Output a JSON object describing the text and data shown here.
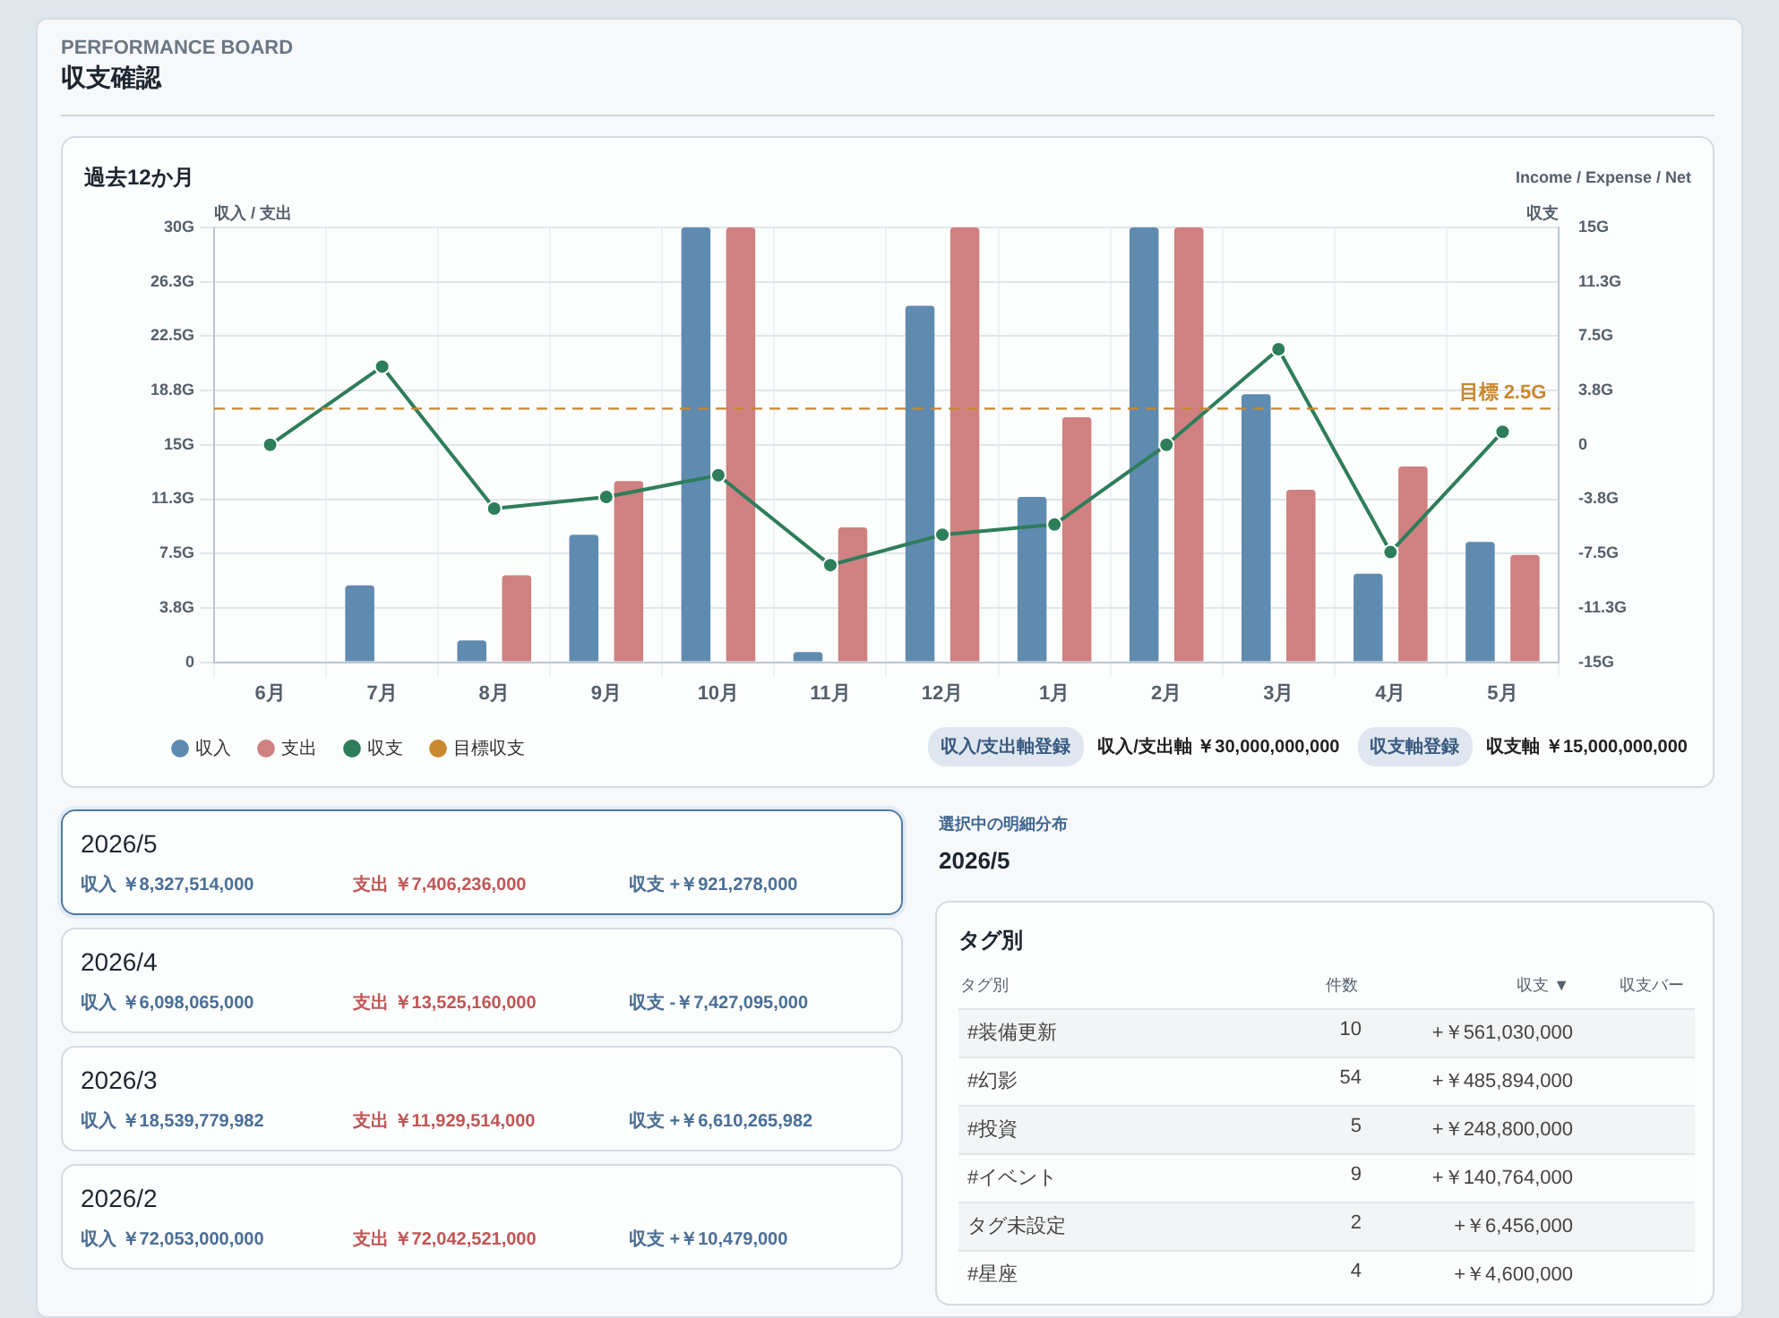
{
  "chart_data": [
    {
      "type": "other",
      "title": "収支確認",
      "subtitle": "PERFORMANCE BOARD"
    },
    {
      "type": "bar",
      "title": "過去12か月",
      "subtitle": "Income / Expense / Net",
      "ylabel": "収入 / 支出",
      "y2label": "収支",
      "categories": [
        "6月",
        "7月",
        "8月",
        "9月",
        "10月",
        "11月",
        "12月",
        "1月",
        "2月",
        "3月",
        "4月",
        "5月"
      ],
      "series": [
        {
          "name": "収入",
          "type": "bar",
          "color": "#5f8bb0",
          "values": [
            0,
            5.3,
            1.5,
            8.8,
            30,
            0.7,
            24.6,
            11.4,
            30,
            18.5,
            6.1,
            8.3
          ]
        },
        {
          "name": "支出",
          "type": "bar",
          "color": "#d08080",
          "values": [
            0,
            0,
            6.0,
            12.5,
            30,
            9.3,
            30,
            16.9,
            30,
            11.9,
            13.5,
            7.4
          ]
        },
        {
          "name": "収支",
          "type": "line",
          "axis": "y2",
          "color": "#2e7d5b",
          "marker": "circle",
          "values": [
            0,
            5.4,
            -4.4,
            -3.6,
            -2.1,
            -8.3,
            -6.2,
            -5.5,
            0,
            6.6,
            -7.4,
            0.9
          ]
        }
      ],
      "ylim": [
        0,
        30
      ],
      "yticks": [
        0,
        {
          "value": 3.75,
          "label": "3.8G"
        },
        {
          "value": 7.5,
          "label": "7.5G"
        },
        {
          "value": 11.25,
          "label": "11.3G"
        },
        {
          "value": 15,
          "label": "15G"
        },
        {
          "value": 18.75,
          "label": "18.8G"
        },
        {
          "value": 22.5,
          "label": "22.5G"
        },
        {
          "value": 26.25,
          "label": "26.3G"
        },
        {
          "value": 30,
          "label": "30G"
        }
      ],
      "y2lim": [
        -15,
        15
      ],
      "y2ticks": [
        {
          "value": -15,
          "label": "-15G"
        },
        {
          "value": -11.25,
          "label": "-11.3G"
        },
        {
          "value": -7.5,
          "label": "-7.5G"
        },
        {
          "value": -3.75,
          "label": "-3.8G"
        },
        0,
        {
          "value": 3.75,
          "label": "3.8G"
        },
        {
          "value": 7.5,
          "label": "7.5G"
        },
        {
          "value": 11.25,
          "label": "11.3G"
        },
        {
          "value": 15,
          "label": "15G"
        }
      ],
      "ref_lines": [
        {
          "axis": "y2",
          "value": 2.5,
          "label": "目標収支",
          "color": "#c8882e",
          "line_style": "dashed"
        }
      ],
      "grid": true,
      "legend": "bottom left",
      "annotations": [
        "収入/支出軸登録",
        "収入/支出軸 ￥30,000,000,000",
        "収支軸登録",
        "収支軸 ￥15,000,000,000",
        "目標 2.5G"
      ]
    },
    {
      "type": "other",
      "annotations": [
        "2026/5",
        "収入 ￥8,327,514,000",
        "支出 ￥7,406,236,000",
        "収支 +￥921,278,000",
        "2026/4",
        "収入 ￥6,098,065,000",
        "支出 ￥13,525,160,000",
        "収支 -￥7,427,095,000",
        "2026/3",
        "収入 ￥18,539,779,982",
        "支出 ￥11,929,514,000",
        "収支 +￥6,610,265,982",
        "2026/2",
        "収入 ￥72,053,000,000",
        "支出 ￥72,042,521,000",
        "収支 +￥10,479,000"
      ]
    },
    {
      "type": "other",
      "annotations": [
        "選択中の明細分布",
        "2026/5",
        "タグ別",
        "タグ別",
        "件数",
        "収支 ▼",
        "収支バー",
        "#装備更新",
        "10",
        "+￥561,030,000",
        "#幻影",
        "54",
        "+￥485,894,000",
        "#投資",
        "5",
        "+￥248,800,000",
        "#イベント",
        "9",
        "+￥140,764,000",
        "タグ未設定",
        "2",
        "+￥6,456,000",
        "#星座",
        "4",
        "+￥4,600,000"
      ]
    }
  ]
}
